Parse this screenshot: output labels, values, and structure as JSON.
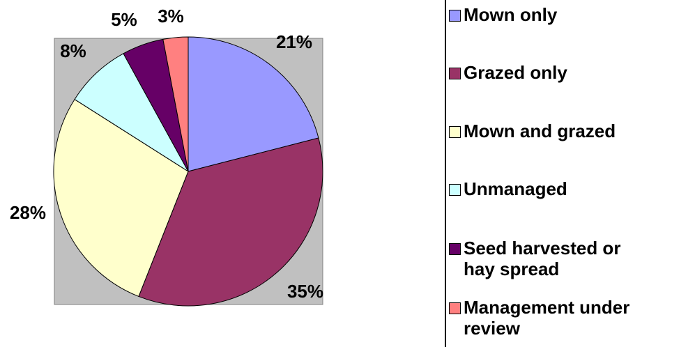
{
  "chart_data": {
    "type": "pie",
    "categories": [
      "Mown only",
      "Grazed only",
      "Mown and grazed",
      "Unmanaged",
      "Seed harvested or hay spread",
      "Management under review"
    ],
    "values": [
      21,
      35,
      28,
      8,
      5,
      3
    ],
    "value_labels": [
      "21%",
      "35%",
      "28%",
      "8%",
      "5%",
      "3%"
    ],
    "colors": [
      "#9999ff",
      "#993366",
      "#ffffcc",
      "#ccffff",
      "#660066",
      "#ff8080"
    ],
    "legend": "right"
  }
}
